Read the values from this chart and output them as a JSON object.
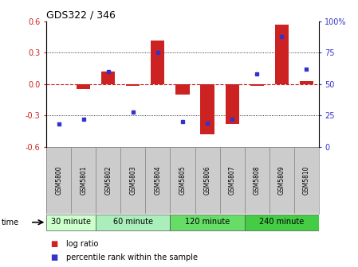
{
  "title": "GDS322 / 346",
  "samples": [
    "GSM5800",
    "GSM5801",
    "GSM5802",
    "GSM5803",
    "GSM5804",
    "GSM5805",
    "GSM5806",
    "GSM5807",
    "GSM5808",
    "GSM5809",
    "GSM5810"
  ],
  "log_ratio": [
    0.0,
    -0.05,
    0.12,
    -0.02,
    0.42,
    -0.1,
    -0.48,
    -0.38,
    -0.02,
    0.57,
    0.03
  ],
  "percentile": [
    18,
    22,
    60,
    28,
    75,
    20,
    19,
    22,
    58,
    88,
    62
  ],
  "bar_color": "#cc2222",
  "dot_color": "#3333cc",
  "left_ylim": [
    -0.6,
    0.6
  ],
  "right_ylim": [
    0,
    100
  ],
  "left_yticks": [
    -0.6,
    -0.3,
    0.0,
    0.3,
    0.6
  ],
  "right_yticks": [
    0,
    25,
    50,
    75,
    100
  ],
  "right_yticklabels": [
    "0",
    "25",
    "50",
    "75",
    "100%"
  ],
  "hline_color": "#cc2222",
  "dotted_lines": [
    -0.3,
    0.3
  ],
  "group_starts": [
    0,
    2,
    5,
    8
  ],
  "group_ends": [
    2,
    5,
    8,
    11
  ],
  "group_labels": [
    "30 minute",
    "60 minute",
    "120 minute",
    "240 minute"
  ],
  "group_colors": [
    "#ccffcc",
    "#aaeebb",
    "#66dd66",
    "#44cc44"
  ],
  "time_label": "time",
  "legend_bar_label": "log ratio",
  "legend_dot_label": "percentile rank within the sample",
  "bar_width": 0.55
}
